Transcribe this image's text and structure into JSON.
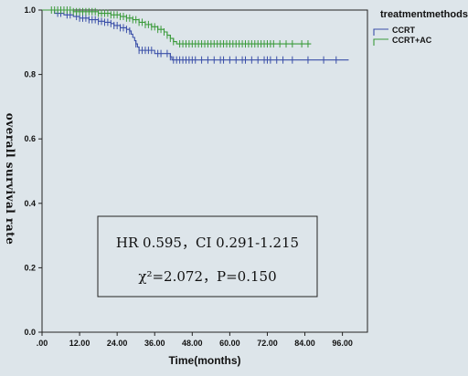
{
  "chart_data": {
    "type": "line",
    "step": true,
    "xlabel": "Time(months)",
    "ylabel": "overall survival rate",
    "xlim": [
      0,
      104
    ],
    "ylim": [
      0,
      1.0
    ],
    "x_ticks": [
      0,
      12,
      24,
      36,
      48,
      60,
      72,
      84,
      96
    ],
    "x_tick_labels": [
      ".00",
      "12.00",
      "24.00",
      "36.00",
      "48.00",
      "60.00",
      "72.00",
      "84.00",
      "96.00"
    ],
    "y_ticks": [
      0,
      0.2,
      0.4,
      0.6,
      0.8,
      1.0
    ],
    "y_tick_labels": [
      "0.0",
      "0.2",
      "0.4",
      "0.6",
      "0.8",
      "1.0"
    ],
    "legend": {
      "title": "treatmentmethods",
      "placement": "top-right"
    },
    "series": [
      {
        "name": "CCRT",
        "color": "#3a4fa8",
        "steps": [
          [
            0,
            1.0
          ],
          [
            4,
            0.99
          ],
          [
            7,
            0.985
          ],
          [
            10,
            0.98
          ],
          [
            12,
            0.975
          ],
          [
            15,
            0.97
          ],
          [
            18,
            0.965
          ],
          [
            20,
            0.962
          ],
          [
            22,
            0.958
          ],
          [
            23,
            0.952
          ],
          [
            25,
            0.945
          ],
          [
            27,
            0.94
          ],
          [
            28,
            0.935
          ],
          [
            28.5,
            0.925
          ],
          [
            29,
            0.915
          ],
          [
            29.6,
            0.905
          ],
          [
            30,
            0.895
          ],
          [
            30.5,
            0.885
          ],
          [
            31,
            0.875
          ],
          [
            36,
            0.865
          ],
          [
            41,
            0.855
          ],
          [
            41.5,
            0.845
          ],
          [
            98,
            0.845
          ]
        ],
        "censors": [
          5,
          6,
          8,
          9,
          11,
          12,
          13,
          14,
          15,
          16,
          17,
          18,
          19,
          20,
          21,
          22,
          23,
          24,
          25,
          26,
          27,
          28,
          30,
          31,
          32,
          33,
          34,
          35,
          37,
          38,
          40,
          41,
          42,
          43,
          44,
          45,
          46,
          47,
          48,
          49,
          51,
          53,
          55,
          57,
          58,
          60,
          62,
          64,
          65,
          67,
          69,
          71,
          72,
          73,
          75,
          77,
          80,
          85,
          90,
          94
        ]
      },
      {
        "name": "CCRT+AC",
        "color": "#3a9a3a",
        "steps": [
          [
            0,
            1.0
          ],
          [
            10,
            0.995
          ],
          [
            18,
            0.99
          ],
          [
            22,
            0.985
          ],
          [
            25,
            0.98
          ],
          [
            27,
            0.975
          ],
          [
            29,
            0.97
          ],
          [
            31,
            0.962
          ],
          [
            33,
            0.955
          ],
          [
            35,
            0.948
          ],
          [
            37,
            0.94
          ],
          [
            39,
            0.932
          ],
          [
            40,
            0.922
          ],
          [
            41,
            0.912
          ],
          [
            42,
            0.902
          ],
          [
            43,
            0.895
          ],
          [
            86,
            0.895
          ]
        ],
        "censors": [
          3,
          4,
          5,
          6,
          7,
          8,
          9,
          10,
          11,
          12,
          13,
          14,
          15,
          16,
          17,
          18,
          19,
          20,
          21,
          22,
          23,
          24,
          25,
          26,
          27,
          28,
          29,
          30,
          31,
          32,
          33,
          34,
          35,
          36,
          37,
          38,
          39,
          40,
          41,
          42,
          44,
          45,
          46,
          47,
          48,
          49,
          50,
          51,
          52,
          53,
          54,
          55,
          56,
          57,
          58,
          59,
          60,
          61,
          62,
          63,
          64,
          65,
          66,
          67,
          68,
          69,
          70,
          71,
          72,
          73,
          74,
          76,
          78,
          80,
          83,
          85
        ]
      }
    ],
    "annotation": {
      "line1": "HR 0.595，CI 0.291-1.215",
      "line2": "χ²=2.072，P=0.150"
    }
  }
}
